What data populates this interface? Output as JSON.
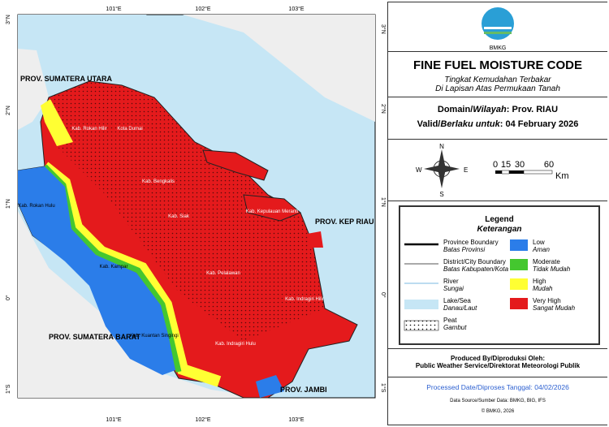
{
  "map": {
    "lon_labels": [
      "101°E",
      "102°E",
      "103°E"
    ],
    "lat_labels": [
      "3°N",
      "2°N",
      "1°N",
      "0°",
      "1°S"
    ],
    "province_labels": [
      "PROV. SUMATERA UTARA",
      "PROV. SUMATERA BARAT",
      "PROV. KEP RIAU",
      "PROV. JAMBI"
    ],
    "regency_labels": [
      "Kab. Rokan Hilir",
      "Kota Dumai",
      "Kab. Bengkalis",
      "Kab. Siak",
      "Kab. Rokan Hulu",
      "Kab. Kampar",
      "Kab. Pelalawan",
      "Kab. Kuantan Singingi",
      "Kab. Indragiri Hulu",
      "Kab. Indragiri Hilir",
      "Kab. Kepulauan Meranti"
    ]
  },
  "header": {
    "logo_text": "BMKG",
    "title": "FINE FUEL MOISTURE CODE",
    "subtitle_1": "Tingkat Kemudahan Terbakar",
    "subtitle_2": "Di Lapisan Atas Permukaan Tanah"
  },
  "domain": {
    "label": "Domain/",
    "label_italic": "Wilayah",
    "value": ": Prov. RIAU"
  },
  "valid": {
    "label": "Valid/",
    "label_italic": "Berlaku untuk",
    "value": ": 04 February 2026"
  },
  "compass": {
    "n": "N",
    "e": "E",
    "s": "S",
    "w": "W"
  },
  "scale": {
    "ticks": [
      "0",
      "15",
      "30",
      "60"
    ],
    "unit": "Km"
  },
  "legend": {
    "title": "Legend",
    "subtitle": "Keterangan",
    "lines": [
      {
        "label": "Province Boundary",
        "label_id": "Batas Provinsi"
      },
      {
        "label": "District/City Boundary",
        "label_id": "Batas Kabupaten/Kota"
      },
      {
        "label": "River",
        "label_id": "Sungai"
      },
      {
        "label": "Lake/Sea",
        "label_id": "Danau/Laut"
      },
      {
        "label": "Peat",
        "label_id": "Gambut"
      }
    ],
    "classes": [
      {
        "label": "Low",
        "label_id": "Aman"
      },
      {
        "label": "Moderate",
        "label_id": "Tidak Mudah"
      },
      {
        "label": "High",
        "label_id": "Mudah"
      },
      {
        "label": "Very High",
        "label_id": "Sangat Mudah"
      }
    ]
  },
  "footer": {
    "produced_by": "Produced By/Diproduksi Oleh:",
    "producer": "Public Weather Service/Direktorat Meteorologi Publik",
    "processed": "Processed Date/Diproses Tanggal: 04/02/2026",
    "source": "Data Source/Sumber Data: BMKG, BIG, IFS",
    "copyright": "© BMKG, 2026"
  }
}
